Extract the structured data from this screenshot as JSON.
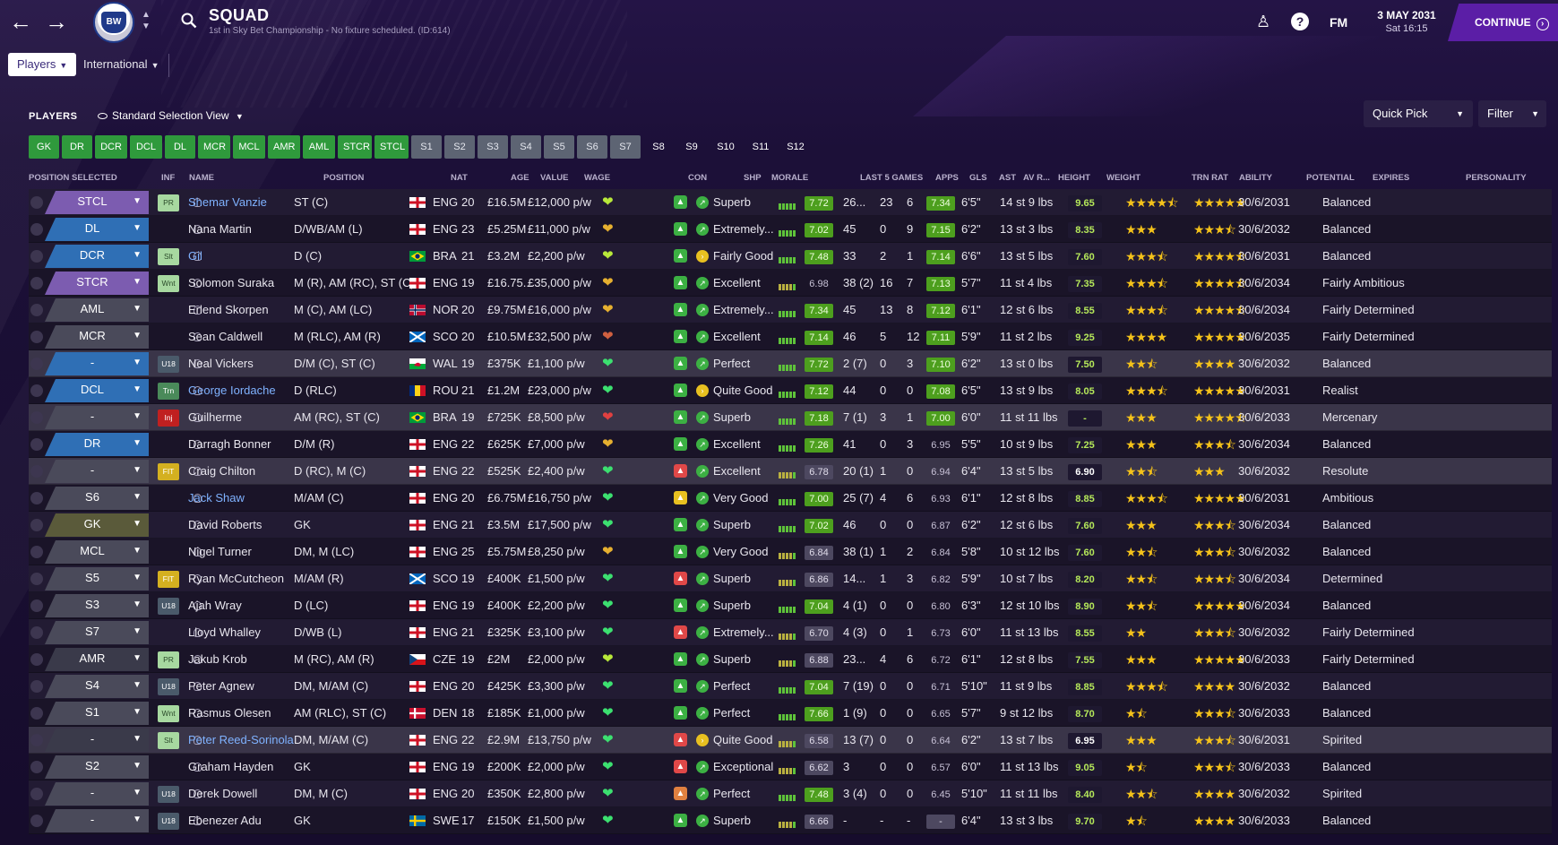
{
  "header": {
    "title": "SQUAD",
    "subtitle": "1st in Sky Bet Championship - No fixture scheduled. (ID:614)",
    "crest_text": "BW",
    "fm": "FM",
    "date_line1": "3 MAY 2031",
    "date_line2": "Sat 16:15",
    "continue_label": "CONTINUE"
  },
  "tabs": [
    {
      "label": "Players"
    },
    {
      "label": "International"
    }
  ],
  "toolbar": {
    "players_label": "PLAYERS",
    "view_label": "Standard Selection View",
    "quick_pick": "Quick Pick",
    "filter": "Filter"
  },
  "chips": [
    {
      "label": "GK",
      "kind": "g"
    },
    {
      "label": "DR",
      "kind": "g"
    },
    {
      "label": "DCR",
      "kind": "g"
    },
    {
      "label": "DCL",
      "kind": "g"
    },
    {
      "label": "DL",
      "kind": "g"
    },
    {
      "label": "MCR",
      "kind": "g"
    },
    {
      "label": "MCL",
      "kind": "g"
    },
    {
      "label": "AMR",
      "kind": "g"
    },
    {
      "label": "AML",
      "kind": "g"
    },
    {
      "label": "STCR",
      "kind": "g"
    },
    {
      "label": "STCL",
      "kind": "g"
    },
    {
      "label": "S1",
      "kind": "s"
    },
    {
      "label": "S2",
      "kind": "s"
    },
    {
      "label": "S3",
      "kind": "s"
    },
    {
      "label": "S4",
      "kind": "s"
    },
    {
      "label": "S5",
      "kind": "s"
    },
    {
      "label": "S6",
      "kind": "s"
    },
    {
      "label": "S7",
      "kind": "s"
    },
    {
      "label": "S8",
      "kind": "d"
    },
    {
      "label": "S9",
      "kind": "d"
    },
    {
      "label": "S10",
      "kind": "d"
    },
    {
      "label": "S11",
      "kind": "d"
    },
    {
      "label": "S12",
      "kind": "d"
    }
  ],
  "columns": {
    "pos_sel": "POSITION SELECTED",
    "inf": "INF",
    "name": "NAME",
    "position": "POSITION",
    "nat": "NAT",
    "age": "AGE",
    "value": "VALUE",
    "wage": "WAGE",
    "con": "CON",
    "shp": "SHP",
    "morale": "MORALE",
    "last5": "LAST 5 GAMES",
    "apps": "APPS",
    "gls": "GLS",
    "ast": "AST",
    "avr": "AV R...",
    "height": "HEIGHT",
    "weight": "WEIGHT",
    "trn": "TRN RAT",
    "ability": "ABILITY",
    "potential": "POTENTIAL",
    "expires": "EXPIRES",
    "personality": "PERSONALITY"
  },
  "players": [
    {
      "sel": "STCL",
      "selc": "#7c5cb0",
      "inf": "PR",
      "infc": "#a7d8a0",
      "name": "Shemar Vanzie",
      "link": true,
      "position": "ST (C)",
      "nat": "ENG",
      "flag": "eng",
      "age": "20",
      "value": "£16.5M",
      "wage": "£12,000 p/w",
      "con": "#b8e83a",
      "shp": "#3cb043",
      "morale": "Superb",
      "morc": "#3cb043",
      "last": "7.72",
      "lastc": "g",
      "bars": 5,
      "apps": "26...",
      "gls": "23",
      "ast": "6",
      "avr": "7.34",
      "avrc": "g",
      "height": "6'5\"",
      "weight": "14 st 9 lbs",
      "trn": "9.65",
      "ab": "★★★★⯪",
      "po": "★★★★★",
      "expires": "30/6/2031",
      "pers": "Balanced"
    },
    {
      "sel": "DL",
      "selc": "#2f6fb5",
      "inf": "",
      "infc": "",
      "name": "Nana Martin",
      "link": false,
      "position": "D/WB/AM (L)",
      "nat": "ENG",
      "flag": "eng",
      "age": "23",
      "value": "£5.25M",
      "wage": "£11,000 p/w",
      "con": "#e6b030",
      "shp": "#3cb043",
      "morale": "Extremely...",
      "morc": "#3cb043",
      "last": "7.02",
      "lastc": "g",
      "bars": 5,
      "apps": "45",
      "gls": "0",
      "ast": "9",
      "avr": "7.15",
      "avrc": "g",
      "height": "6'2\"",
      "weight": "13 st 3 lbs",
      "trn": "8.35",
      "ab": "★★★",
      "po": "★★★⯪",
      "expires": "30/6/2032",
      "pers": "Balanced"
    },
    {
      "sel": "DCR",
      "selc": "#2f6fb5",
      "inf": "Slt",
      "infc": "#a7d8a0",
      "name": "Gil",
      "link": true,
      "position": "D (C)",
      "nat": "BRA",
      "flag": "bra",
      "age": "21",
      "value": "£3.2M",
      "wage": "£2,200 p/w",
      "con": "#b8e83a",
      "shp": "#3cb043",
      "morale": "Fairly Good",
      "morc": "#e8c020",
      "last": "7.48",
      "lastc": "g",
      "bars": 5,
      "apps": "33",
      "gls": "2",
      "ast": "1",
      "avr": "7.14",
      "avrc": "g",
      "height": "6'6\"",
      "weight": "13 st 5 lbs",
      "trn": "7.60",
      "ab": "★★★⯪",
      "po": "★★★★⯪",
      "expires": "30/6/2031",
      "pers": "Balanced"
    },
    {
      "sel": "STCR",
      "selc": "#7c5cb0",
      "inf": "Wnt",
      "infc": "#a7d8a0",
      "name": "Solomon Suraka",
      "link": false,
      "position": "M (R), AM (RC), ST (C)",
      "nat": "ENG",
      "flag": "eng",
      "age": "19",
      "value": "£16.75...",
      "wage": "£35,000 p/w",
      "con": "#e6b030",
      "shp": "#3cb043",
      "morale": "Excellent",
      "morc": "#3cb043",
      "last": "6.98",
      "lastc": "d",
      "bars": 5,
      "apps": "38 (2)",
      "gls": "16",
      "ast": "7",
      "avr": "7.13",
      "avrc": "g",
      "height": "5'7\"",
      "weight": "11 st 4 lbs",
      "trn": "7.35",
      "ab": "★★★⯪",
      "po": "★★★★⯪",
      "expires": "30/6/2034",
      "pers": "Fairly Ambitious"
    },
    {
      "sel": "AML",
      "selc": "#4a4a5a",
      "inf": "",
      "infc": "",
      "name": "Erlend Skorpen",
      "link": false,
      "position": "M (C), AM (LC)",
      "nat": "NOR",
      "flag": "nor",
      "age": "20",
      "value": "£9.75M",
      "wage": "£16,000 p/w",
      "con": "#e6b030",
      "shp": "#3cb043",
      "morale": "Extremely...",
      "morc": "#3cb043",
      "last": "7.34",
      "lastc": "g",
      "bars": 5,
      "apps": "45",
      "gls": "13",
      "ast": "8",
      "avr": "7.12",
      "avrc": "g",
      "height": "6'1\"",
      "weight": "12 st 6 lbs",
      "trn": "8.55",
      "ab": "★★★⯪",
      "po": "★★★★⯪",
      "expires": "30/6/2034",
      "pers": "Fairly Determined"
    },
    {
      "sel": "MCR",
      "selc": "#4a4a5a",
      "inf": "",
      "infc": "",
      "name": "Sean Caldwell",
      "link": false,
      "position": "M (RLC), AM (R)",
      "nat": "SCO",
      "flag": "sco",
      "age": "20",
      "value": "£10.5M",
      "wage": "£32,500 p/w",
      "con": "#d06040",
      "shp": "#3cb043",
      "morale": "Excellent",
      "morc": "#3cb043",
      "last": "7.14",
      "lastc": "g",
      "bars": 5,
      "apps": "46",
      "gls": "5",
      "ast": "12",
      "avr": "7.11",
      "avrc": "g",
      "height": "5'9\"",
      "weight": "11 st 2 lbs",
      "trn": "9.25",
      "ab": "★★★★",
      "po": "★★★★★",
      "expires": "30/6/2035",
      "pers": "Fairly Determined"
    },
    {
      "sel": "-",
      "selc": "#2f6fb5",
      "inf": "U18",
      "infc": "#4a5a6a",
      "name": "Neal Vickers",
      "link": false,
      "position": "D/M (C), ST (C)",
      "nat": "WAL",
      "flag": "wal",
      "age": "19",
      "value": "£375K",
      "wage": "£1,100 p/w",
      "con": "#3ce070",
      "shp": "#3cb043",
      "morale": "Perfect",
      "morc": "#3cb043",
      "last": "7.72",
      "lastc": "g",
      "bars": 5,
      "apps": "2 (7)",
      "gls": "0",
      "ast": "3",
      "avr": "7.10",
      "avrc": "g",
      "height": "6'2\"",
      "weight": "13 st 0 lbs",
      "trn": "7.50",
      "ab": "★★⯪",
      "po": "★★★★",
      "expires": "30/6/2032",
      "pers": "Balanced"
    },
    {
      "sel": "DCL",
      "selc": "#2f6fb5",
      "inf": "Trn",
      "infc": "#4a8a5a",
      "name": "George Iordache",
      "link": true,
      "position": "D (RLC)",
      "nat": "ROU",
      "flag": "rou",
      "age": "21",
      "value": "£1.2M",
      "wage": "£23,000 p/w",
      "con": "#3ce070",
      "shp": "#3cb043",
      "morale": "Quite Good",
      "morc": "#e8c020",
      "last": "7.12",
      "lastc": "g",
      "bars": 5,
      "apps": "44",
      "gls": "0",
      "ast": "0",
      "avr": "7.08",
      "avrc": "g",
      "height": "6'5\"",
      "weight": "13 st 9 lbs",
      "trn": "8.05",
      "ab": "★★★⯪",
      "po": "★★★★★",
      "expires": "30/6/2031",
      "pers": "Realist"
    },
    {
      "sel": "-",
      "selc": "#4a4a5a",
      "inf": "Inj",
      "infc": "#c02020",
      "name": "Guilherme",
      "link": false,
      "position": "AM (RC), ST (C)",
      "nat": "BRA",
      "flag": "bra",
      "age": "19",
      "value": "£725K",
      "wage": "£8,500 p/w",
      "con": "#e04040",
      "shp": "#3cb043",
      "morale": "Superb",
      "morc": "#3cb043",
      "last": "7.18",
      "lastc": "g",
      "bars": 5,
      "apps": "7 (1)",
      "gls": "3",
      "ast": "1",
      "avr": "7.00",
      "avrc": "g",
      "height": "6'0\"",
      "weight": "11 st 11 lbs",
      "trn": "-",
      "ab": "★★★",
      "po": "★★★★⯪",
      "expires": "30/6/2033",
      "pers": "Mercenary"
    },
    {
      "sel": "DR",
      "selc": "#2f6fb5",
      "inf": "",
      "infc": "",
      "name": "Darragh Bonner",
      "link": false,
      "position": "D/M (R)",
      "nat": "ENG",
      "flag": "eng",
      "age": "22",
      "value": "£625K",
      "wage": "£7,000 p/w",
      "con": "#e6b030",
      "shp": "#3cb043",
      "morale": "Excellent",
      "morc": "#3cb043",
      "last": "7.26",
      "lastc": "g",
      "bars": 5,
      "apps": "41",
      "gls": "0",
      "ast": "3",
      "avr": "6.95",
      "avrc": "d",
      "height": "5'5\"",
      "weight": "10 st 9 lbs",
      "trn": "7.25",
      "ab": "★★★",
      "po": "★★★⯪",
      "expires": "30/6/2034",
      "pers": "Balanced"
    },
    {
      "sel": "-",
      "selc": "#4a4a5a",
      "inf": "FIT",
      "infc": "#d4b020",
      "name": "Craig Chilton",
      "link": false,
      "position": "D (RC), M (C)",
      "nat": "ENG",
      "flag": "eng",
      "age": "22",
      "value": "£525K",
      "wage": "£2,400 p/w",
      "con": "#3ce070",
      "shp": "#e04848",
      "morale": "Excellent",
      "morc": "#3cb043",
      "last": "6.78",
      "lastc": "m",
      "bars": 5,
      "apps": "20 (1)",
      "gls": "1",
      "ast": "0",
      "avr": "6.94",
      "avrc": "d",
      "height": "6'4\"",
      "weight": "13 st 5 lbs",
      "trn": "6.90",
      "trnw": true,
      "ab": "★★⯪",
      "po": "★★★",
      "expires": "30/6/2032",
      "pers": "Resolute"
    },
    {
      "sel": "S6",
      "selc": "#4a4a5a",
      "inf": "",
      "infc": "",
      "name": "Jack Shaw",
      "link": true,
      "position": "M/AM (C)",
      "nat": "ENG",
      "flag": "eng",
      "age": "20",
      "value": "£6.75M",
      "wage": "£16,750 p/w",
      "con": "#3ce070",
      "shp": "#e8c020",
      "morale": "Very Good",
      "morc": "#3cb043",
      "last": "7.00",
      "lastc": "g",
      "bars": 5,
      "apps": "25 (7)",
      "gls": "4",
      "ast": "6",
      "avr": "6.93",
      "avrc": "d",
      "height": "6'1\"",
      "weight": "12 st 8 lbs",
      "trn": "8.85",
      "ab": "★★★⯪",
      "po": "★★★★★",
      "expires": "30/6/2031",
      "pers": "Ambitious"
    },
    {
      "sel": "GK",
      "selc": "#5a5a3a",
      "inf": "",
      "infc": "",
      "name": "David Roberts",
      "link": false,
      "position": "GK",
      "nat": "ENG",
      "flag": "eng",
      "age": "21",
      "value": "£3.5M",
      "wage": "£17,500 p/w",
      "con": "#3ce070",
      "shp": "#3cb043",
      "morale": "Superb",
      "morc": "#3cb043",
      "last": "7.02",
      "lastc": "g",
      "bars": 5,
      "apps": "46",
      "gls": "0",
      "ast": "0",
      "avr": "6.87",
      "avrc": "d",
      "height": "6'2\"",
      "weight": "12 st 6 lbs",
      "trn": "7.60",
      "ab": "★★★",
      "po": "★★★⯪",
      "expires": "30/6/2034",
      "pers": "Balanced"
    },
    {
      "sel": "MCL",
      "selc": "#4a4a5a",
      "inf": "",
      "infc": "",
      "name": "Nigel Turner",
      "link": false,
      "position": "DM, M (LC)",
      "nat": "ENG",
      "flag": "eng",
      "age": "25",
      "value": "£5.75M",
      "wage": "£8,250 p/w",
      "con": "#e6b030",
      "shp": "#3cb043",
      "morale": "Very Good",
      "morc": "#3cb043",
      "last": "6.84",
      "lastc": "m",
      "bars": 5,
      "apps": "38 (1)",
      "gls": "1",
      "ast": "2",
      "avr": "6.84",
      "avrc": "d",
      "height": "5'8\"",
      "weight": "10 st 12 lbs",
      "trn": "7.60",
      "ab": "★★⯪",
      "po": "★★★⯪",
      "expires": "30/6/2032",
      "pers": "Balanced"
    },
    {
      "sel": "S5",
      "selc": "#4a4a5a",
      "inf": "FIT",
      "infc": "#d4b020",
      "name": "Ryan McCutcheon",
      "link": false,
      "position": "M/AM (R)",
      "nat": "SCO",
      "flag": "sco",
      "age": "19",
      "value": "£400K",
      "wage": "£1,500 p/w",
      "con": "#3ce070",
      "shp": "#e04848",
      "morale": "Superb",
      "morc": "#3cb043",
      "last": "6.86",
      "lastc": "m",
      "bars": 5,
      "apps": "14...",
      "gls": "1",
      "ast": "3",
      "avr": "6.82",
      "avrc": "d",
      "height": "5'9\"",
      "weight": "10 st 7 lbs",
      "trn": "8.20",
      "ab": "★★⯪",
      "po": "★★★⯪",
      "expires": "30/6/2034",
      "pers": "Determined"
    },
    {
      "sel": "S3",
      "selc": "#4a4a5a",
      "inf": "U18",
      "infc": "#4a5a6a",
      "name": "Ajah Wray",
      "link": false,
      "position": "D (LC)",
      "nat": "ENG",
      "flag": "eng",
      "age": "19",
      "value": "£400K",
      "wage": "£2,200 p/w",
      "con": "#3ce070",
      "shp": "#3cb043",
      "morale": "Superb",
      "morc": "#3cb043",
      "last": "7.04",
      "lastc": "g",
      "bars": 5,
      "apps": "4 (1)",
      "gls": "0",
      "ast": "0",
      "avr": "6.80",
      "avrc": "d",
      "height": "6'3\"",
      "weight": "12 st 10 lbs",
      "trn": "8.90",
      "ab": "★★⯪",
      "po": "★★★★★",
      "expires": "30/6/2034",
      "pers": "Balanced"
    },
    {
      "sel": "S7",
      "selc": "#4a4a5a",
      "inf": "",
      "infc": "",
      "name": "Lloyd Whalley",
      "link": false,
      "position": "D/WB (L)",
      "nat": "ENG",
      "flag": "eng",
      "age": "21",
      "value": "£325K",
      "wage": "£3,100 p/w",
      "con": "#3ce070",
      "shp": "#e04848",
      "morale": "Extremely...",
      "morc": "#3cb043",
      "last": "6.70",
      "lastc": "m",
      "bars": 5,
      "apps": "4 (3)",
      "gls": "0",
      "ast": "1",
      "avr": "6.73",
      "avrc": "d",
      "height": "6'0\"",
      "weight": "11 st 13 lbs",
      "trn": "8.55",
      "ab": "★★",
      "po": "★★★⯪",
      "expires": "30/6/2032",
      "pers": "Fairly Determined"
    },
    {
      "sel": "AMR",
      "selc": "#3a3a4a",
      "inf": "PR",
      "infc": "#a7d8a0",
      "name": "Jakub Krob",
      "link": false,
      "position": "M (RC), AM (R)",
      "nat": "CZE",
      "flag": "cze",
      "age": "19",
      "value": "£2M",
      "wage": "£2,000 p/w",
      "con": "#b8e83a",
      "shp": "#3cb043",
      "morale": "Superb",
      "morc": "#3cb043",
      "last": "6.88",
      "lastc": "m",
      "bars": 5,
      "apps": "23...",
      "gls": "4",
      "ast": "6",
      "avr": "6.72",
      "avrc": "d",
      "height": "6'1\"",
      "weight": "12 st 8 lbs",
      "trn": "7.55",
      "ab": "★★★",
      "po": "★★★★★",
      "expires": "30/6/2033",
      "pers": "Fairly Determined"
    },
    {
      "sel": "S4",
      "selc": "#4a4a5a",
      "inf": "U18",
      "infc": "#4a5a6a",
      "name": "Peter Agnew",
      "link": false,
      "position": "DM, M/AM (C)",
      "nat": "ENG",
      "flag": "eng",
      "age": "20",
      "value": "£425K",
      "wage": "£3,300 p/w",
      "con": "#3ce070",
      "shp": "#3cb043",
      "morale": "Perfect",
      "morc": "#3cb043",
      "last": "7.04",
      "lastc": "g",
      "bars": 5,
      "apps": "7 (19)",
      "gls": "0",
      "ast": "0",
      "avr": "6.71",
      "avrc": "d",
      "height": "5'10\"",
      "weight": "11 st 9 lbs",
      "trn": "8.85",
      "ab": "★★★⯪",
      "po": "★★★★",
      "expires": "30/6/2032",
      "pers": "Balanced"
    },
    {
      "sel": "S1",
      "selc": "#4a4a5a",
      "inf": "Wnt",
      "infc": "#a7d8a0",
      "name": "Rasmus Olesen",
      "link": false,
      "position": "AM (RLC), ST (C)",
      "nat": "DEN",
      "flag": "den",
      "age": "18",
      "value": "£185K",
      "wage": "£1,000 p/w",
      "con": "#3ce070",
      "shp": "#3cb043",
      "morale": "Perfect",
      "morc": "#3cb043",
      "last": "7.66",
      "lastc": "g",
      "bars": 5,
      "apps": "1 (9)",
      "gls": "0",
      "ast": "0",
      "avr": "6.65",
      "avrc": "d",
      "height": "5'7\"",
      "weight": "9 st 12 lbs",
      "trn": "8.70",
      "ab": "★⯪",
      "po": "★★★⯪",
      "expires": "30/6/2033",
      "pers": "Balanced"
    },
    {
      "sel": "-",
      "selc": "#3a3a4a",
      "inf": "Slt",
      "infc": "#a7d8a0",
      "name": "Peter Reed-Sorinola",
      "link": true,
      "position": "DM, M/AM (C)",
      "nat": "ENG",
      "flag": "eng",
      "age": "22",
      "value": "£2.9M",
      "wage": "£13,750 p/w",
      "con": "#3ce070",
      "shp": "#e04848",
      "morale": "Quite Good",
      "morc": "#e8c020",
      "last": "6.58",
      "lastc": "m",
      "bars": 5,
      "apps": "13 (7)",
      "gls": "0",
      "ast": "0",
      "avr": "6.64",
      "avrc": "d",
      "height": "6'2\"",
      "weight": "13 st 7 lbs",
      "trn": "6.95",
      "trnw": true,
      "ab": "★★★",
      "po": "★★★⯪",
      "expires": "30/6/2031",
      "pers": "Spirited"
    },
    {
      "sel": "S2",
      "selc": "#4a4a5a",
      "inf": "",
      "infc": "",
      "name": "Graham Hayden",
      "link": false,
      "position": "GK",
      "nat": "ENG",
      "flag": "eng",
      "age": "19",
      "value": "£200K",
      "wage": "£2,000 p/w",
      "con": "#3ce070",
      "shp": "#e04848",
      "morale": "Exceptional",
      "morc": "#3cb043",
      "last": "6.62",
      "lastc": "m",
      "bars": 5,
      "apps": "3",
      "gls": "0",
      "ast": "0",
      "avr": "6.57",
      "avrc": "d",
      "height": "6'0\"",
      "weight": "11 st 13 lbs",
      "trn": "9.05",
      "ab": "★⯪",
      "po": "★★★⯪",
      "expires": "30/6/2033",
      "pers": "Balanced"
    },
    {
      "sel": "-",
      "selc": "#4a4a5a",
      "inf": "U18",
      "infc": "#4a5a6a",
      "name": "Derek Dowell",
      "link": false,
      "position": "DM, M (C)",
      "nat": "ENG",
      "flag": "eng",
      "age": "20",
      "value": "£350K",
      "wage": "£2,800 p/w",
      "con": "#3ce070",
      "shp": "#e08040",
      "morale": "Perfect",
      "morc": "#3cb043",
      "last": "7.48",
      "lastc": "g",
      "bars": 5,
      "apps": "3 (4)",
      "gls": "0",
      "ast": "0",
      "avr": "6.45",
      "avrc": "d",
      "height": "5'10\"",
      "weight": "11 st 11 lbs",
      "trn": "8.40",
      "ab": "★★⯪",
      "po": "★★★★",
      "expires": "30/6/2032",
      "pers": "Spirited"
    },
    {
      "sel": "-",
      "selc": "#4a4a5a",
      "inf": "U18",
      "infc": "#4a5a6a",
      "name": "Ebenezer Adu",
      "link": false,
      "position": "GK",
      "nat": "SWE",
      "flag": "swe",
      "age": "17",
      "value": "£150K",
      "wage": "£1,500 p/w",
      "con": "#3ce070",
      "shp": "#3cb043",
      "morale": "Superb",
      "morc": "#3cb043",
      "last": "6.66",
      "lastc": "m",
      "bars": 5,
      "apps": "-",
      "gls": "-",
      "ast": "-",
      "avr": "-",
      "avrc": "m",
      "height": "6'4\"",
      "weight": "13 st 3 lbs",
      "trn": "9.70",
      "ab": "★⯪",
      "po": "★★★★",
      "expires": "30/6/2033",
      "pers": "Balanced"
    }
  ]
}
